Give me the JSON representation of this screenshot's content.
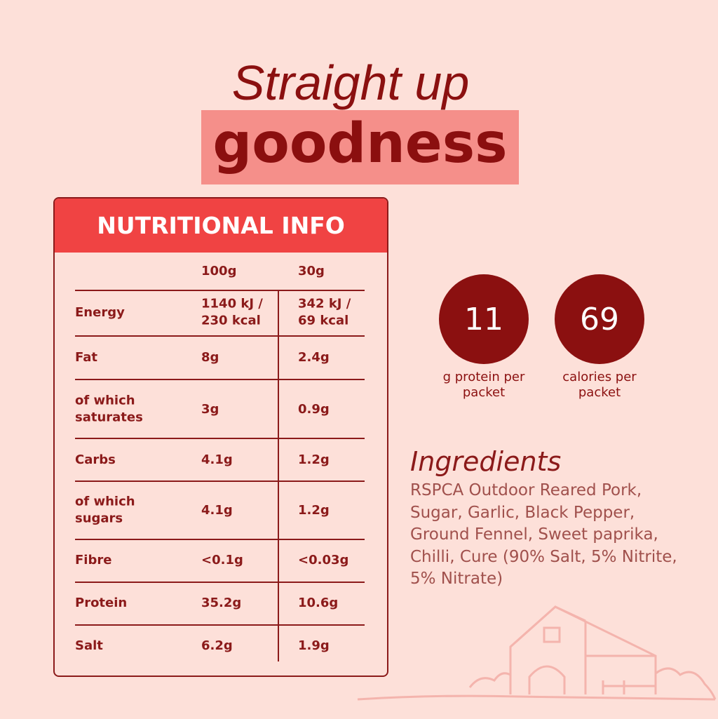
{
  "header": {
    "line1": "Straight up",
    "line2": "goodness"
  },
  "table": {
    "title": "NUTRITIONAL INFO",
    "columns": [
      "100g",
      "30g"
    ],
    "rows": [
      [
        "Energy",
        "1140 kJ / 230 kcal",
        "342 kJ / 69 kcal"
      ],
      [
        "Fat",
        "8g",
        "2.4g"
      ],
      [
        "of which saturates",
        "3g",
        "0.9g"
      ],
      [
        "Carbs",
        "4.1g",
        "1.2g"
      ],
      [
        "of which sugars",
        "4.1g",
        "1.2g"
      ],
      [
        "Fibre",
        "<0.1g",
        "<0.03g"
      ],
      [
        "Protein",
        "35.2g",
        "10.6g"
      ],
      [
        "Salt",
        "6.2g",
        "1.9g"
      ]
    ]
  },
  "stats": [
    {
      "value": "11",
      "label": "g protein per packet"
    },
    {
      "value": "69",
      "label": "calories per packet"
    }
  ],
  "ingredients": {
    "title": "Ingredients",
    "lines": [
      "RSPCA Outdoor Reared Pork,",
      "Sugar, Garlic,  Black Pepper,",
      "Ground Fennel, Sweet paprika,",
      "Chilli, Cure (90% Salt, 5% Nitrite,",
      "5% Nitrate)"
    ]
  }
}
